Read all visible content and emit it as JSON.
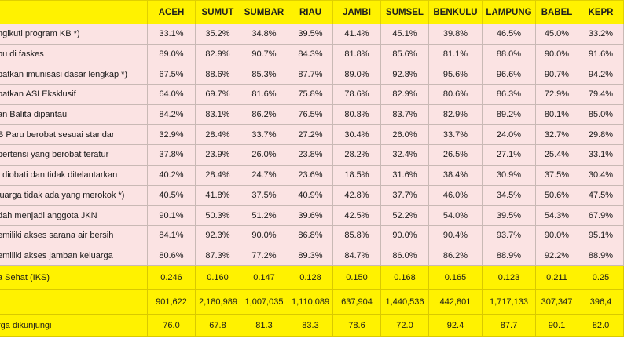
{
  "columns": [
    "ACEH",
    "SUMUT",
    "SUMBAR",
    "RIAU",
    "JAMBI",
    "SUMSEL",
    "BENKULU",
    "LAMPUNG",
    "BABEL",
    "KEPR"
  ],
  "indicator_rows": [
    {
      "label": "ngikuti program KB *)",
      "values": [
        "33.1%",
        "35.2%",
        "34.8%",
        "39.5%",
        "41.4%",
        "45.1%",
        "39.8%",
        "46.5%",
        "45.0%",
        "33.2%"
      ]
    },
    {
      "label": "bu di faskes",
      "values": [
        "89.0%",
        "82.9%",
        "90.7%",
        "84.3%",
        "81.8%",
        "85.6%",
        "81.1%",
        "88.0%",
        "90.0%",
        "91.6%"
      ]
    },
    {
      "label": "patkan imunisasi dasar lengkap *)",
      "values": [
        "67.5%",
        "88.6%",
        "85.3%",
        "87.7%",
        "89.0%",
        "92.8%",
        "95.6%",
        "96.6%",
        "90.7%",
        "94.2%"
      ]
    },
    {
      "label": "patkan ASI Eksklusif",
      "values": [
        "64.0%",
        "69.7%",
        "81.6%",
        "75.8%",
        "78.6%",
        "82.9%",
        "80.6%",
        "86.3%",
        "72.9%",
        "79.4%"
      ]
    },
    {
      "label": "an Balita dipantau",
      "values": [
        "84.2%",
        "83.1%",
        "86.2%",
        "76.5%",
        "80.8%",
        "83.7%",
        "82.9%",
        "89.2%",
        "80.1%",
        "85.0%"
      ]
    },
    {
      "label": "B Paru berobat sesuai standar",
      "values": [
        "32.9%",
        "28.4%",
        "33.7%",
        "27.2%",
        "30.4%",
        "26.0%",
        "33.7%",
        "24.0%",
        "32.7%",
        "29.8%"
      ]
    },
    {
      "label": "pertensi yang berobat teratur",
      "values": [
        "37.8%",
        "23.9%",
        "26.0%",
        "23.8%",
        "28.2%",
        "32.4%",
        "26.5%",
        "27.1%",
        "25.4%",
        "33.1%"
      ]
    },
    {
      "label": ". diobati dan tidak ditelantarkan",
      "values": [
        "40.2%",
        "28.4%",
        "24.7%",
        "23.6%",
        "18.5%",
        "31.6%",
        "38.4%",
        "30.9%",
        "37.5%",
        "30.4%"
      ]
    },
    {
      "label": "luarga tidak ada yang merokok *)",
      "values": [
        "40.5%",
        "41.8%",
        "37.5%",
        "40.9%",
        "42.8%",
        "37.7%",
        "46.0%",
        "34.5%",
        "50.6%",
        "47.5%"
      ]
    },
    {
      "label": "dah menjadi anggota JKN",
      "values": [
        "90.1%",
        "50.3%",
        "51.2%",
        "39.6%",
        "42.5%",
        "52.2%",
        "54.0%",
        "39.5%",
        "54.3%",
        "67.9%"
      ]
    },
    {
      "label": "emiliki akses sarana air bersih",
      "values": [
        "84.1%",
        "92.3%",
        "90.0%",
        "86.8%",
        "85.8%",
        "90.0%",
        "90.4%",
        "93.7%",
        "90.0%",
        "95.1%"
      ]
    },
    {
      "label": "emiliki akses jamban keluarga",
      "values": [
        "80.6%",
        "87.3%",
        "77.2%",
        "89.3%",
        "84.7%",
        "86.0%",
        "86.2%",
        "88.9%",
        "92.2%",
        "88.9%"
      ]
    }
  ],
  "summary_rows": [
    {
      "label": "a Sehat (IKS)",
      "values": [
        "0.246",
        "0.160",
        "0.147",
        "0.128",
        "0.150",
        "0.168",
        "0.165",
        "0.123",
        "0.211",
        "0.25"
      ]
    },
    {
      "label": "",
      "values": [
        "901,622",
        "2,180,989",
        "1,007,035",
        "1,110,089",
        "637,904",
        "1,440,536",
        "442,801",
        "1,717,133",
        "307,347",
        "396,4"
      ]
    },
    {
      "label": "rga dikunjungi",
      "values": [
        "76.0",
        "67.8",
        "81.3",
        "83.3",
        "78.6",
        "72.0",
        "92.4",
        "87.7",
        "90.1",
        "82.0"
      ]
    }
  ],
  "colors": {
    "header_bg": "#fff200",
    "row_bg": "#fbe3e3",
    "border": "#c9b9b5"
  }
}
